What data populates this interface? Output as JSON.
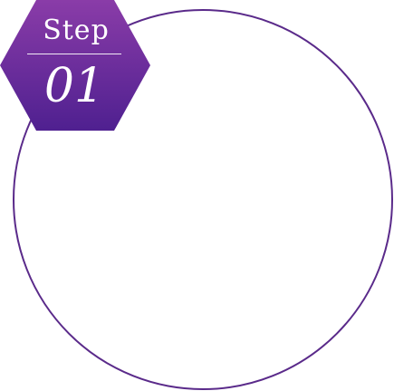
{
  "badge": {
    "label": "Step",
    "number": "01",
    "color_top": "#8a3ca8",
    "color_bottom": "#4f2090"
  },
  "ring": {
    "stroke_color": "#5a2a8a"
  }
}
